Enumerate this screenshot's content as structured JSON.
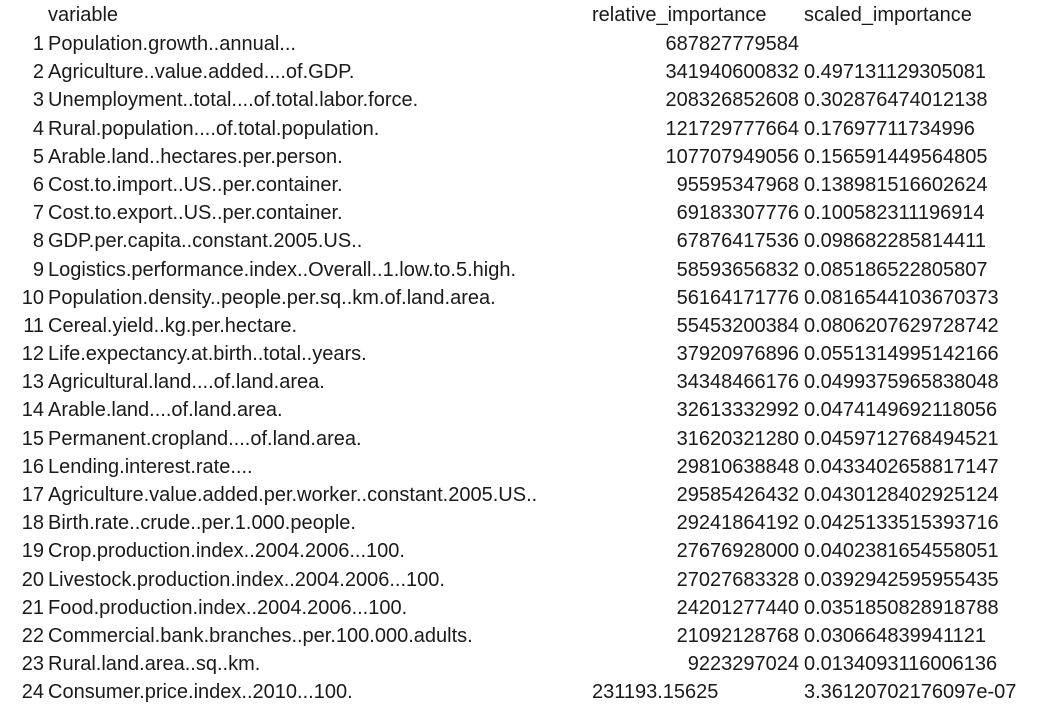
{
  "header": {
    "variable": "variable",
    "relative_importance": "relative_importance",
    "scaled_importance": "scaled_importance"
  },
  "rows": [
    {
      "idx": "1",
      "variable": "Population.growth..annual...",
      "relative_importance": "687827779584",
      "scaled_importance": ""
    },
    {
      "idx": "2",
      "variable": "Agriculture..value.added....of.GDP.",
      "relative_importance": "341940600832",
      "scaled_importance": "0.497131129305081"
    },
    {
      "idx": "3",
      "variable": "Unemployment..total....of.total.labor.force.",
      "relative_importance": "208326852608",
      "scaled_importance": "0.302876474012138"
    },
    {
      "idx": "4",
      "variable": "Rural.population....of.total.population.",
      "relative_importance": "121729777664",
      "scaled_importance": "0.17697711734996"
    },
    {
      "idx": "5",
      "variable": "Arable.land..hectares.per.person.",
      "relative_importance": "107707949056",
      "scaled_importance": "0.156591449564805"
    },
    {
      "idx": "6",
      "variable": "Cost.to.import..US..per.container.",
      "relative_importance": "95595347968",
      "scaled_importance": "0.138981516602624"
    },
    {
      "idx": "7",
      "variable": "Cost.to.export..US..per.container.",
      "relative_importance": "69183307776",
      "scaled_importance": "0.100582311196914"
    },
    {
      "idx": "8",
      "variable": "GDP.per.capita..constant.2005.US..",
      "relative_importance": "67876417536",
      "scaled_importance": "0.098682285814411"
    },
    {
      "idx": "9",
      "variable": "Logistics.performance.index..Overall..1.low.to.5.high.",
      "relative_importance": "58593656832",
      "scaled_importance": "0.085186522805807"
    },
    {
      "idx": "10",
      "variable": "Population.density..people.per.sq..km.of.land.area.",
      "relative_importance": "56164171776",
      "scaled_importance": "0.0816544103670373"
    },
    {
      "idx": "11",
      "variable": "Cereal.yield..kg.per.hectare.",
      "relative_importance": "55453200384",
      "scaled_importance": "0.0806207629728742"
    },
    {
      "idx": "12",
      "variable": "Life.expectancy.at.birth..total..years.",
      "relative_importance": "37920976896",
      "scaled_importance": "0.0551314995142166"
    },
    {
      "idx": "13",
      "variable": "Agricultural.land....of.land.area.",
      "relative_importance": "34348466176",
      "scaled_importance": "0.0499375965838048"
    },
    {
      "idx": "14",
      "variable": "Arable.land....of.land.area.",
      "relative_importance": "32613332992",
      "scaled_importance": "0.0474149692118056"
    },
    {
      "idx": "15",
      "variable": "Permanent.cropland....of.land.area.",
      "relative_importance": "31620321280",
      "scaled_importance": "0.0459712768494521"
    },
    {
      "idx": "16",
      "variable": "Lending.interest.rate....",
      "relative_importance": "29810638848",
      "scaled_importance": "0.0433402658817147"
    },
    {
      "idx": "17",
      "variable": "Agriculture.value.added.per.worker..constant.2005.US..",
      "relative_importance": "29585426432",
      "scaled_importance": "0.0430128402925124"
    },
    {
      "idx": "18",
      "variable": "Birth.rate..crude..per.1.000.people.",
      "relative_importance": "29241864192",
      "scaled_importance": "0.0425133515393716"
    },
    {
      "idx": "19",
      "variable": "Crop.production.index..2004.2006...100.",
      "relative_importance": "27676928000",
      "scaled_importance": "0.0402381654558051"
    },
    {
      "idx": "20",
      "variable": "Livestock.production.index..2004.2006...100.",
      "relative_importance": "27027683328",
      "scaled_importance": "0.0392942595955435"
    },
    {
      "idx": "21",
      "variable": "Food.production.index..2004.2006...100.",
      "relative_importance": "24201277440",
      "scaled_importance": "0.0351850828918788"
    },
    {
      "idx": "22",
      "variable": "Commercial.bank.branches..per.100.000.adults.",
      "relative_importance": "21092128768",
      "scaled_importance": "0.030664839941121"
    },
    {
      "idx": "23",
      "variable": "Rural.land.area..sq..km.",
      "relative_importance": "9223297024",
      "scaled_importance": "0.0134093116006136"
    },
    {
      "idx": "24",
      "variable": "Consumer.price.index..2010...100.",
      "relative_importance": "231193.15625",
      "scaled_importance": "3.36120702176097e-07"
    }
  ]
}
